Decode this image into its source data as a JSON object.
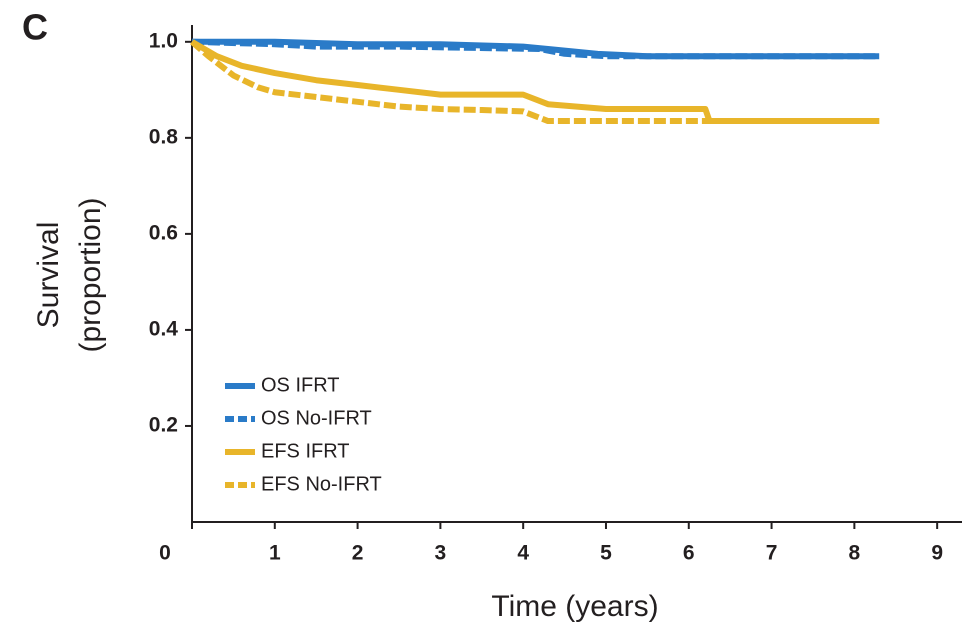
{
  "chart_data": {
    "type": "line",
    "panel_label": "C",
    "xlabel": "Time (years)",
    "ylabel": [
      "Survival",
      "(proportion)"
    ],
    "xlim": [
      0,
      9.3
    ],
    "ylim": [
      0,
      1.035
    ],
    "xticks": [
      0,
      1,
      2,
      3,
      4,
      5,
      6,
      7,
      8,
      9
    ],
    "yticks": [
      0.2,
      0.4,
      0.6,
      0.8,
      {
        "value": 1,
        "label": "1.0"
      }
    ],
    "legend": "lower left",
    "series": [
      {
        "name": "OS IFRT",
        "color": "#2a7bc8",
        "style": "solid",
        "x": [
          0,
          1,
          2,
          3,
          4,
          4.3,
          4.9,
          5.5,
          8.3
        ],
        "values": [
          1,
          1,
          0.995,
          0.995,
          0.99,
          0.985,
          0.975,
          0.97,
          0.97
        ]
      },
      {
        "name": "OS No-IFRT",
        "color": "#2a7bc8",
        "style": "dashed",
        "x": [
          0,
          1,
          1.5,
          2.5,
          4.2,
          4.5,
          5,
          8.3
        ],
        "values": [
          1,
          0.995,
          0.99,
          0.99,
          0.985,
          0.975,
          0.97,
          0.97
        ]
      },
      {
        "name": "EFS IFRT",
        "color": "#e8b52a",
        "style": "solid",
        "x": [
          0,
          0.3,
          0.6,
          1,
          1.5,
          2,
          2.5,
          3,
          3.5,
          4,
          4.3,
          5,
          6.2,
          6.25,
          8.3
        ],
        "values": [
          1,
          0.97,
          0.95,
          0.935,
          0.92,
          0.91,
          0.9,
          0.89,
          0.89,
          0.89,
          0.87,
          0.86,
          0.86,
          0.835,
          0.835
        ]
      },
      {
        "name": "EFS No-IFRT",
        "color": "#e8b52a",
        "style": "dashed",
        "x": [
          0,
          0.2,
          0.5,
          0.8,
          1,
          1.5,
          2,
          2.5,
          3,
          3.5,
          4,
          4.3,
          5,
          8.3
        ],
        "values": [
          1,
          0.97,
          0.93,
          0.905,
          0.895,
          0.885,
          0.875,
          0.865,
          0.86,
          0.858,
          0.855,
          0.835,
          0.835,
          0.835
        ]
      }
    ]
  }
}
